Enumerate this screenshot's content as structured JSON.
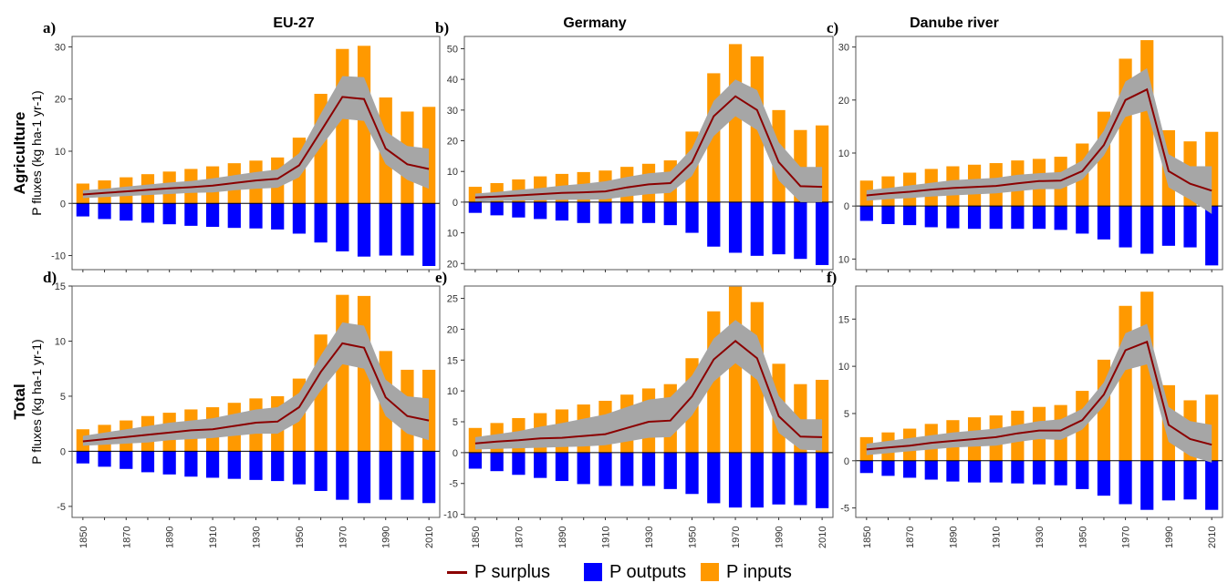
{
  "column_titles": [
    "EU-27",
    "Germany",
    "Danube river"
  ],
  "row_labels": [
    {
      "bold": "Agriculture",
      "sub": "P fluxes (kg ha-1 yr-1)"
    },
    {
      "bold": "Total",
      "sub": "P fluxes (kg ha-1 yr-1)"
    }
  ],
  "legend": {
    "surplus": "P surplus",
    "outputs": "P outputs",
    "inputs": "P inputs"
  },
  "colors": {
    "inputs": "#ff9900",
    "outputs": "#0000ff",
    "surplus": "#8b0000",
    "band": "#a6a6a6"
  },
  "chart_data": [
    {
      "type": "bar",
      "panel_label": "a)",
      "region": "EU-27",
      "row": "Agriculture",
      "x": [
        1850,
        1860,
        1870,
        1880,
        1890,
        1900,
        1910,
        1920,
        1930,
        1940,
        1950,
        1960,
        1970,
        1980,
        1990,
        2000,
        2010
      ],
      "x_tick_labels": [
        "1850",
        "1870",
        "1890",
        "1910",
        "1930",
        "1950",
        "1970",
        "1990",
        "2010"
      ],
      "inputs": [
        3.8,
        4.4,
        5.0,
        5.6,
        6.1,
        6.6,
        7.1,
        7.7,
        8.2,
        8.8,
        12.6,
        21.0,
        29.6,
        30.2,
        20.3,
        17.6,
        18.5
      ],
      "outputs": [
        -2.5,
        -3.0,
        -3.3,
        -3.7,
        -4.0,
        -4.3,
        -4.5,
        -4.7,
        -4.8,
        -5.0,
        -5.8,
        -7.5,
        -9.2,
        -10.2,
        -10.0,
        -10.0,
        -12.0
      ],
      "surplus": [
        1.7,
        2.0,
        2.3,
        2.6,
        2.9,
        3.1,
        3.4,
        3.9,
        4.4,
        4.7,
        7.3,
        13.8,
        20.4,
        20.0,
        10.5,
        7.5,
        6.6
      ],
      "band_low": [
        1.0,
        1.2,
        1.4,
        1.6,
        1.8,
        2.0,
        2.1,
        2.5,
        2.8,
        3.0,
        5.0,
        10.8,
        16.2,
        15.8,
        7.5,
        4.5,
        2.8
      ],
      "band_high": [
        2.5,
        2.8,
        3.2,
        3.6,
        4.0,
        4.3,
        4.8,
        5.4,
        6.0,
        6.5,
        9.6,
        17.2,
        24.4,
        24.2,
        13.8,
        11.0,
        10.5
      ],
      "ylim": [
        -12.7,
        32
      ],
      "yticks": [
        -10,
        0,
        10,
        20,
        30
      ],
      "ytick_labels": [
        "-10",
        "0",
        "10",
        "20",
        "30"
      ]
    },
    {
      "type": "bar",
      "panel_label": "b)",
      "region": "Germany",
      "row": "Agriculture",
      "x": [
        1850,
        1860,
        1870,
        1880,
        1890,
        1900,
        1910,
        1920,
        1930,
        1940,
        1950,
        1960,
        1970,
        1980,
        1990,
        2000,
        2010
      ],
      "x_tick_labels": [
        "1850",
        "1870",
        "1890",
        "1910",
        "1930",
        "1950",
        "1970",
        "1990",
        "2010"
      ],
      "inputs": [
        5.0,
        6.2,
        7.4,
        8.4,
        9.2,
        9.8,
        10.3,
        11.5,
        12.5,
        13.6,
        23.0,
        42.0,
        51.5,
        47.5,
        30.0,
        23.5,
        25.0
      ],
      "outputs": [
        -3.5,
        -4.3,
        -5.0,
        -5.5,
        -6.0,
        -6.8,
        -7.0,
        -7.0,
        -6.8,
        -7.5,
        -10.0,
        -14.5,
        -16.5,
        -17.5,
        -17.0,
        -18.5,
        -20.5
      ],
      "surplus": [
        1.5,
        1.8,
        2.2,
        2.6,
        3.0,
        3.2,
        3.5,
        4.8,
        5.8,
        6.2,
        13.0,
        28.0,
        34.5,
        30.0,
        13.0,
        5.2,
        5.0
      ],
      "band_low": [
        0.2,
        0.4,
        0.5,
        0.6,
        0.7,
        0.8,
        0.9,
        1.8,
        2.6,
        3.0,
        8.5,
        21.5,
        28.0,
        23.5,
        7.0,
        0.0,
        0.0
      ],
      "band_high": [
        2.8,
        3.3,
        4.0,
        4.6,
        5.4,
        6.0,
        6.8,
        8.2,
        9.4,
        10.0,
        17.5,
        33.0,
        40.0,
        36.5,
        19.5,
        11.5,
        11.5
      ],
      "ylim": [
        -22,
        54
      ],
      "yticks": [
        -20,
        -10,
        0,
        10,
        20,
        30,
        40,
        50
      ],
      "ytick_labels": [
        "20",
        "10",
        "0",
        "10",
        "20",
        "30",
        "40",
        "50"
      ]
    },
    {
      "type": "bar",
      "panel_label": "c)",
      "region": "Danube river",
      "row": "Agriculture",
      "x": [
        1850,
        1860,
        1870,
        1880,
        1890,
        1900,
        1910,
        1920,
        1930,
        1940,
        1950,
        1960,
        1970,
        1980,
        1990,
        2000,
        2010
      ],
      "x_tick_labels": [
        "1850",
        "1870",
        "1890",
        "1910",
        "1930",
        "1950",
        "1970",
        "1990",
        "2010"
      ],
      "inputs": [
        4.8,
        5.6,
        6.3,
        7.0,
        7.5,
        7.8,
        8.1,
        8.6,
        8.9,
        9.3,
        11.8,
        17.8,
        27.8,
        31.3,
        14.3,
        12.2,
        14.0
      ],
      "outputs": [
        -2.8,
        -3.4,
        -3.6,
        -4.0,
        -4.2,
        -4.3,
        -4.3,
        -4.3,
        -4.3,
        -4.5,
        -5.2,
        -6.3,
        -7.8,
        -9.0,
        -7.5,
        -7.8,
        -11.2
      ],
      "surplus": [
        2.0,
        2.4,
        2.7,
        3.1,
        3.4,
        3.6,
        3.8,
        4.3,
        4.7,
        4.8,
        6.6,
        11.5,
        20.0,
        22.0,
        6.6,
        4.2,
        2.9
      ],
      "band_low": [
        1.0,
        1.3,
        1.5,
        1.8,
        2.0,
        2.2,
        2.4,
        2.8,
        3.2,
        3.2,
        5.0,
        9.5,
        16.8,
        18.0,
        3.5,
        1.2,
        -1.5
      ],
      "band_high": [
        3.0,
        3.4,
        3.9,
        4.4,
        4.9,
        5.1,
        5.3,
        5.9,
        6.2,
        6.4,
        8.6,
        14.2,
        23.5,
        26.0,
        9.8,
        7.5,
        7.5
      ],
      "ylim": [
        -12,
        32
      ],
      "yticks": [
        -10,
        0,
        10,
        20,
        30
      ],
      "ytick_labels": [
        "10",
        "0",
        "10",
        "20",
        "30"
      ]
    },
    {
      "type": "bar",
      "panel_label": "d)",
      "region": "EU-27",
      "row": "Total",
      "x": [
        1850,
        1860,
        1870,
        1880,
        1890,
        1900,
        1910,
        1920,
        1930,
        1940,
        1950,
        1960,
        1970,
        1980,
        1990,
        2000,
        2010
      ],
      "x_tick_labels": [
        "1850",
        "1870",
        "1890",
        "1910",
        "1930",
        "1950",
        "1970",
        "1990",
        "2010"
      ],
      "inputs": [
        2.0,
        2.4,
        2.8,
        3.2,
        3.5,
        3.8,
        4.0,
        4.4,
        4.8,
        5.0,
        6.6,
        10.6,
        14.2,
        14.1,
        9.1,
        7.4,
        7.4
      ],
      "outputs": [
        -1.1,
        -1.4,
        -1.6,
        -1.9,
        -2.1,
        -2.3,
        -2.4,
        -2.5,
        -2.6,
        -2.7,
        -3.0,
        -3.6,
        -4.4,
        -4.7,
        -4.4,
        -4.4,
        -4.7
      ],
      "surplus": [
        0.9,
        1.1,
        1.3,
        1.5,
        1.7,
        1.9,
        2.0,
        2.3,
        2.6,
        2.7,
        4.0,
        7.2,
        9.8,
        9.4,
        4.9,
        3.2,
        2.8
      ],
      "band_low": [
        0.5,
        0.6,
        0.7,
        0.8,
        1.0,
        1.1,
        1.2,
        1.4,
        1.6,
        1.6,
        2.7,
        5.5,
        7.9,
        7.5,
        3.2,
        1.6,
        1.0
      ],
      "band_high": [
        1.4,
        1.7,
        2.0,
        2.3,
        2.6,
        2.8,
        3.0,
        3.4,
        3.8,
        4.0,
        5.3,
        8.7,
        11.7,
        11.4,
        6.5,
        5.0,
        4.8
      ],
      "ylim": [
        -6,
        15
      ],
      "yticks": [
        -5,
        0,
        5,
        10,
        15
      ],
      "ytick_labels": [
        "-5",
        "0",
        "5",
        "10",
        "15"
      ]
    },
    {
      "type": "bar",
      "panel_label": "e)",
      "region": "Germany",
      "row": "Total",
      "x": [
        1850,
        1860,
        1870,
        1880,
        1890,
        1900,
        1910,
        1920,
        1930,
        1940,
        1950,
        1960,
        1970,
        1980,
        1990,
        2000,
        2010
      ],
      "x_tick_labels": [
        "1850",
        "1870",
        "1890",
        "1910",
        "1930",
        "1950",
        "1970",
        "1990",
        "2010"
      ],
      "inputs": [
        4.0,
        4.8,
        5.6,
        6.4,
        7.0,
        7.8,
        8.4,
        9.4,
        10.4,
        11.1,
        15.3,
        22.9,
        26.9,
        24.4,
        14.4,
        11.1,
        11.8
      ],
      "outputs": [
        -2.6,
        -3.0,
        -3.6,
        -4.1,
        -4.6,
        -5.1,
        -5.4,
        -5.4,
        -5.4,
        -5.9,
        -6.7,
        -8.2,
        -8.9,
        -8.9,
        -8.4,
        -8.5,
        -9.0
      ],
      "surplus": [
        1.5,
        1.8,
        2.0,
        2.3,
        2.4,
        2.7,
        3.0,
        4.0,
        5.0,
        5.2,
        9.1,
        15.1,
        18.1,
        15.3,
        5.9,
        2.6,
        2.5
      ],
      "band_low": [
        0.5,
        0.6,
        0.7,
        0.8,
        0.9,
        1.0,
        1.2,
        1.8,
        2.4,
        2.5,
        6.0,
        11.5,
        14.5,
        11.8,
        3.2,
        0.5,
        0.3
      ],
      "band_high": [
        2.5,
        3.0,
        3.5,
        4.2,
        4.8,
        5.5,
        6.2,
        7.4,
        8.6,
        9.0,
        12.5,
        18.5,
        21.5,
        19.0,
        9.2,
        5.4,
        5.4
      ],
      "ylim": [
        -10.5,
        27
      ],
      "yticks": [
        -10,
        -5,
        0,
        5,
        10,
        15,
        20,
        25
      ],
      "ytick_labels": [
        "-10",
        "-5",
        "0",
        "5",
        "10",
        "15",
        "20",
        "25"
      ]
    },
    {
      "type": "bar",
      "panel_label": "f)",
      "region": "Danube river",
      "row": "Total",
      "x": [
        1850,
        1860,
        1870,
        1880,
        1890,
        1900,
        1910,
        1920,
        1930,
        1940,
        1950,
        1960,
        1970,
        1980,
        1990,
        2000,
        2010
      ],
      "x_tick_labels": [
        "1850",
        "1870",
        "1890",
        "1910",
        "1930",
        "1950",
        "1970",
        "1990",
        "2010"
      ],
      "inputs": [
        2.5,
        3.0,
        3.4,
        3.9,
        4.3,
        4.6,
        4.8,
        5.3,
        5.7,
        5.9,
        7.4,
        10.7,
        16.4,
        17.9,
        8.0,
        6.4,
        7.0
      ],
      "outputs": [
        -1.3,
        -1.6,
        -1.8,
        -2.0,
        -2.2,
        -2.3,
        -2.3,
        -2.4,
        -2.5,
        -2.6,
        -3.0,
        -3.7,
        -4.6,
        -5.2,
        -4.2,
        -4.1,
        -5.2
      ],
      "surplus": [
        1.2,
        1.4,
        1.6,
        1.9,
        2.1,
        2.3,
        2.5,
        2.9,
        3.2,
        3.2,
        4.3,
        7.0,
        11.7,
        12.6,
        3.8,
        2.3,
        1.7
      ],
      "band_low": [
        0.6,
        0.8,
        1.0,
        1.2,
        1.4,
        1.5,
        1.6,
        2.0,
        2.3,
        2.2,
        3.3,
        5.8,
        9.6,
        10.2,
        2.0,
        0.5,
        -0.2
      ],
      "band_high": [
        1.8,
        2.1,
        2.4,
        2.7,
        3.0,
        3.2,
        3.4,
        3.8,
        4.2,
        4.4,
        5.5,
        8.3,
        13.5,
        14.5,
        5.7,
        4.2,
        3.8
      ],
      "ylim": [
        -6,
        18.5
      ],
      "yticks": [
        -5,
        0,
        5,
        10,
        15
      ],
      "ytick_labels": [
        "-5",
        "0",
        "5",
        "10",
        "15"
      ]
    }
  ]
}
